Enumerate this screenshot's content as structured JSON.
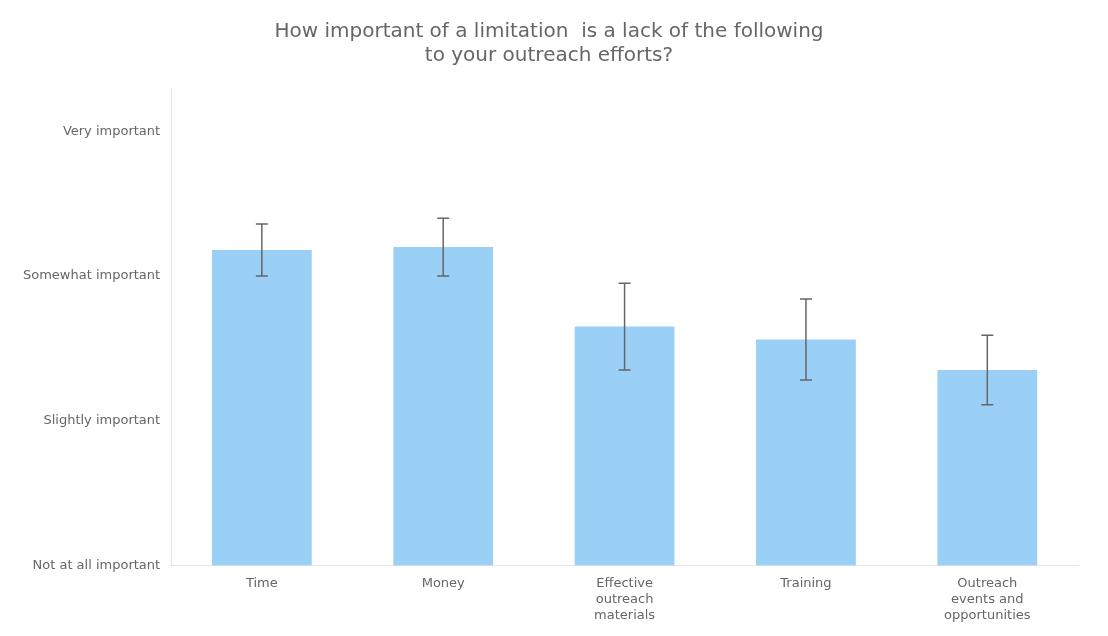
{
  "chart_data": {
    "type": "bar",
    "title": "How important of a limitation  is a lack of the following\nto your outreach efforts?",
    "categories": [
      "Time",
      "Money",
      "Effective\noutreach\nmaterials",
      "Training",
      "Outreach\nevents and\nopportunities"
    ],
    "values": [
      3.18,
      3.2,
      2.65,
      2.56,
      2.35
    ],
    "errors": [
      0.18,
      0.2,
      0.3,
      0.28,
      0.24
    ],
    "ylim": [
      1,
      4.3
    ],
    "yticks": [
      {
        "value": 1,
        "label": "Not at all important"
      },
      {
        "value": 2,
        "label": "Slightly important"
      },
      {
        "value": 3,
        "label": "Somewhat important"
      },
      {
        "value": 4,
        "label": "Very important"
      }
    ],
    "grid": false
  }
}
